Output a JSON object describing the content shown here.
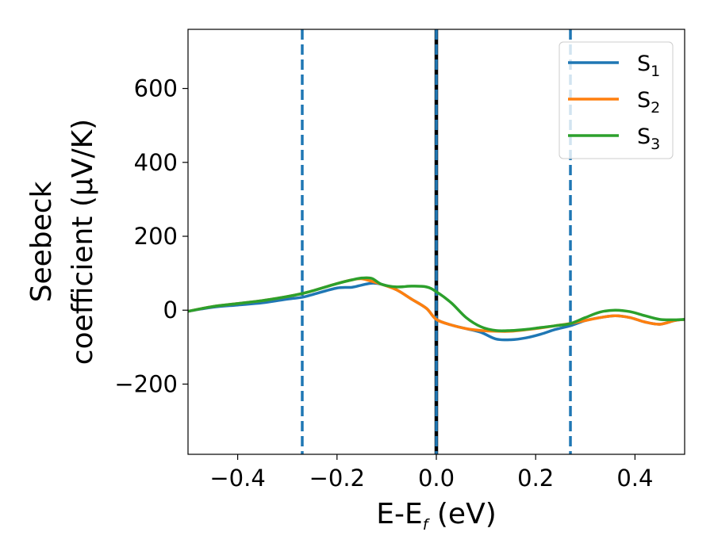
{
  "chart_data": {
    "type": "line",
    "xlabel": {
      "main": "E-E",
      "sub": "f",
      "unit": " (eV)"
    },
    "ylabel": {
      "line1": "Seebeck",
      "line2": "coefficient  (μV/K)"
    },
    "xlim": [
      -0.5,
      0.5
    ],
    "ylim": [
      -390,
      760
    ],
    "xticks": [
      -0.4,
      -0.2,
      0.0,
      0.2,
      0.4
    ],
    "xtick_labels": [
      "−0.4",
      "−0.2",
      "0.0",
      "0.2",
      "0.4"
    ],
    "yticks": [
      -200,
      0,
      200,
      400,
      600
    ],
    "ytick_labels": [
      "−200",
      "0",
      "200",
      "400",
      "600"
    ],
    "grid": false,
    "legend_position": "top-right",
    "vlines": [
      {
        "x": -0.27,
        "style": "dashed",
        "color": "#1f77b4"
      },
      {
        "x": 0.27,
        "style": "dashed",
        "color": "#1f77b4"
      },
      {
        "x": 0.0,
        "style": "solid",
        "color": "#000000"
      },
      {
        "x": 0.0,
        "style": "dashed",
        "color": "#1f77b4"
      }
    ],
    "series": [
      {
        "name": "S",
        "sub": "1",
        "color": "#1f77b4",
        "x": [
          -0.5,
          -0.45,
          -0.4,
          -0.35,
          -0.3,
          -0.27,
          -0.25,
          -0.2,
          -0.17,
          -0.15,
          -0.13,
          -0.11,
          -0.08,
          -0.05,
          -0.02,
          0.0,
          0.03,
          0.06,
          0.09,
          0.12,
          0.15,
          0.18,
          0.21,
          0.24,
          0.27,
          0.3,
          0.33,
          0.36,
          0.39,
          0.42,
          0.45,
          0.48,
          0.5
        ],
        "y": [
          -3,
          8,
          14,
          20,
          30,
          35,
          42,
          60,
          62,
          68,
          73,
          70,
          55,
          30,
          5,
          -25,
          -40,
          -50,
          -60,
          -78,
          -80,
          -75,
          -65,
          -52,
          -42,
          -28,
          -20,
          -15,
          -20,
          -32,
          -38,
          -28,
          -25
        ]
      },
      {
        "name": "S",
        "sub": "2",
        "color": "#ff7f0e",
        "x": [
          -0.5,
          -0.45,
          -0.4,
          -0.35,
          -0.3,
          -0.27,
          -0.25,
          -0.2,
          -0.17,
          -0.15,
          -0.13,
          -0.11,
          -0.08,
          -0.05,
          -0.02,
          0.0,
          0.03,
          0.06,
          0.09,
          0.12,
          0.15,
          0.18,
          0.21,
          0.24,
          0.27,
          0.3,
          0.33,
          0.36,
          0.39,
          0.42,
          0.45,
          0.48,
          0.5
        ],
        "y": [
          -3,
          10,
          18,
          26,
          37,
          45,
          52,
          72,
          82,
          85,
          78,
          70,
          55,
          30,
          5,
          -25,
          -40,
          -50,
          -55,
          -57,
          -57,
          -53,
          -48,
          -42,
          -36,
          -28,
          -20,
          -15,
          -20,
          -32,
          -38,
          -28,
          -25
        ]
      },
      {
        "name": "S",
        "sub": "3",
        "color": "#2ca02c",
        "x": [
          -0.5,
          -0.45,
          -0.4,
          -0.35,
          -0.3,
          -0.27,
          -0.25,
          -0.2,
          -0.17,
          -0.15,
          -0.13,
          -0.11,
          -0.08,
          -0.05,
          -0.02,
          0.0,
          0.03,
          0.06,
          0.09,
          0.12,
          0.15,
          0.18,
          0.21,
          0.24,
          0.27,
          0.3,
          0.33,
          0.36,
          0.39,
          0.42,
          0.45,
          0.48,
          0.5
        ],
        "y": [
          -3,
          10,
          18,
          26,
          37,
          45,
          52,
          72,
          82,
          87,
          86,
          70,
          63,
          65,
          63,
          50,
          20,
          -20,
          -45,
          -55,
          -55,
          -52,
          -47,
          -42,
          -36,
          -20,
          -5,
          0,
          -4,
          -15,
          -25,
          -26,
          -25
        ]
      }
    ]
  }
}
